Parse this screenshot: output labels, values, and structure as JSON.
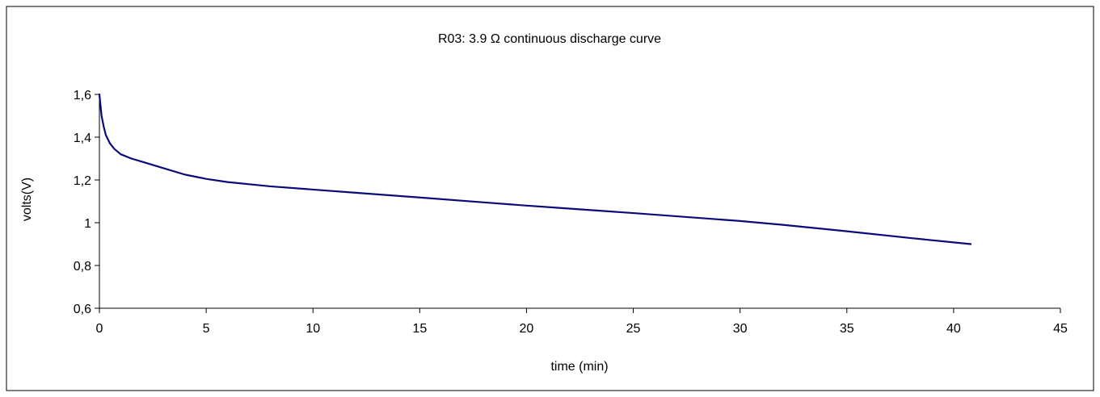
{
  "chart_data": {
    "type": "line",
    "title": "R03: 3.9 Ω continuous discharge curve",
    "xlabel": "time (min)",
    "ylabel": "volts(V)",
    "xlim": [
      0,
      45
    ],
    "ylim": [
      0.6,
      1.6
    ],
    "x_ticks": [
      "0",
      "5",
      "10",
      "15",
      "20",
      "25",
      "30",
      "35",
      "40",
      "45"
    ],
    "x_tick_values": [
      0,
      5,
      10,
      15,
      20,
      25,
      30,
      35,
      40,
      45
    ],
    "y_ticks": [
      "0,6",
      "0,8",
      "1",
      "1,2",
      "1,4",
      "1,6"
    ],
    "y_tick_values": [
      0.6,
      0.8,
      1.0,
      1.2,
      1.4,
      1.6
    ],
    "grid": false,
    "legend": "none",
    "line_color": "#0a0a78",
    "series": [
      {
        "x": [
          0,
          0.1,
          0.2,
          0.3,
          0.5,
          0.7,
          1.0,
          1.5,
          2,
          3,
          4,
          5,
          6,
          8,
          10,
          12,
          15,
          18,
          20,
          22,
          25,
          28,
          30,
          32,
          35,
          38,
          40,
          40.8
        ],
        "values": [
          1.6,
          1.5,
          1.45,
          1.41,
          1.37,
          1.345,
          1.32,
          1.3,
          1.285,
          1.255,
          1.225,
          1.205,
          1.19,
          1.17,
          1.155,
          1.14,
          1.118,
          1.095,
          1.08,
          1.066,
          1.045,
          1.023,
          1.008,
          0.99,
          0.96,
          0.928,
          0.908,
          0.9
        ]
      }
    ]
  }
}
